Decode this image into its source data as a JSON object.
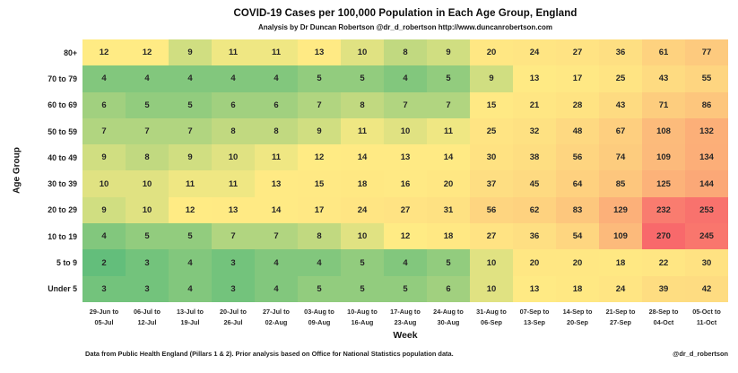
{
  "header": {
    "title": "COVID-19 Cases per 100,000 Population in Each Age Group, England",
    "subtitle": "Analysis by Dr Duncan Robertson @dr_d_robertson http://www.duncanrobertson.com"
  },
  "chart_data": {
    "type": "heatmap",
    "title": "COVID-19 Cases per 100,000 Population in Each Age Group, England",
    "subtitle": "Analysis by Dr Duncan Robertson @dr_d_robertson http://www.duncanrobertson.com",
    "xlabel": "Week",
    "ylabel": "Age Group",
    "rows": [
      "80+",
      "70 to 79",
      "60 to 69",
      "50 to 59",
      "40 to 49",
      "30 to 39",
      "20 to 29",
      "10 to 19",
      "5 to 9",
      "Under 5"
    ],
    "columns": [
      [
        "29-Jun to",
        "05-Jul"
      ],
      [
        "06-Jul to",
        "12-Jul"
      ],
      [
        "13-Jul to",
        "19-Jul"
      ],
      [
        "20-Jul to",
        "26-Jul"
      ],
      [
        "27-Jul to",
        "02-Aug"
      ],
      [
        "03-Aug to",
        "09-Aug"
      ],
      [
        "10-Aug to",
        "16-Aug"
      ],
      [
        "17-Aug to",
        "23-Aug"
      ],
      [
        "24-Aug to",
        "30-Aug"
      ],
      [
        "31-Aug to",
        "06-Sep"
      ],
      [
        "07-Sep to",
        "13-Sep"
      ],
      [
        "14-Sep to",
        "20-Sep"
      ],
      [
        "21-Sep to",
        "27-Sep"
      ],
      [
        "28-Sep to",
        "04-Oct"
      ],
      [
        "05-Oct to",
        "11-Oct"
      ]
    ],
    "values": [
      [
        12,
        12,
        9,
        11,
        11,
        13,
        10,
        8,
        9,
        20,
        24,
        27,
        36,
        61,
        77
      ],
      [
        4,
        4,
        4,
        4,
        4,
        5,
        5,
        4,
        5,
        9,
        13,
        17,
        25,
        43,
        55
      ],
      [
        6,
        5,
        5,
        6,
        6,
        7,
        8,
        7,
        7,
        15,
        21,
        28,
        43,
        71,
        86
      ],
      [
        7,
        7,
        7,
        8,
        8,
        9,
        11,
        10,
        11,
        25,
        32,
        48,
        67,
        108,
        132
      ],
      [
        9,
        8,
        9,
        10,
        11,
        12,
        14,
        13,
        14,
        30,
        38,
        56,
        74,
        109,
        134
      ],
      [
        10,
        10,
        11,
        11,
        13,
        15,
        18,
        16,
        20,
        37,
        45,
        64,
        85,
        125,
        144
      ],
      [
        9,
        10,
        12,
        13,
        14,
        17,
        24,
        27,
        31,
        56,
        62,
        83,
        129,
        232,
        253
      ],
      [
        4,
        5,
        5,
        7,
        7,
        8,
        10,
        12,
        18,
        27,
        36,
        54,
        109,
        270,
        245
      ],
      [
        2,
        3,
        4,
        3,
        4,
        4,
        5,
        4,
        5,
        10,
        20,
        20,
        18,
        22,
        30
      ],
      [
        3,
        3,
        4,
        3,
        4,
        5,
        5,
        5,
        6,
        10,
        13,
        18,
        24,
        39,
        42
      ]
    ],
    "color_scale": {
      "min_value": 2,
      "mid_value": 12,
      "max_value": 270,
      "min_color": "#63BE7B",
      "mid_color": "#FFEB84",
      "max_color": "#F8696B"
    },
    "grid": false,
    "legend": "none"
  },
  "footer": {
    "left": "Data from Public Health England (Pillars 1 & 2).  Prior analysis based on Office for National Statistics population data.",
    "right": "@dr_d_robertson"
  }
}
